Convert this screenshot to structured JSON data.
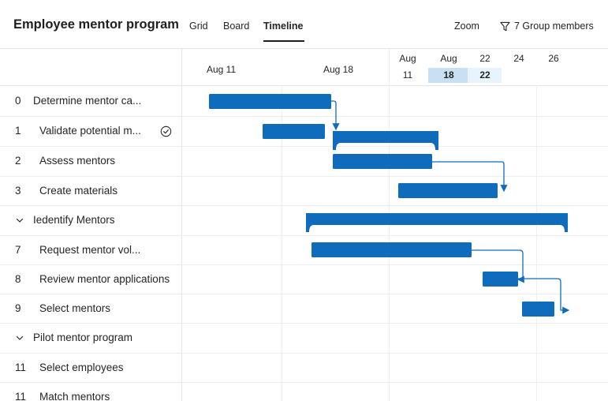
{
  "header": {
    "title": "Employee mentor program",
    "tabs": [
      {
        "label": "Grid"
      },
      {
        "label": "Board"
      },
      {
        "label": "Timeline",
        "active": true
      }
    ],
    "zoom_label": "Zoom",
    "filter_label": "7 Group members"
  },
  "timeline_header": {
    "weeks": [
      "Aug 11",
      "Aug 18"
    ],
    "days": [
      {
        "month": "Aug",
        "day": "11"
      },
      {
        "month": "Aug",
        "day": "18",
        "highlight": "selected"
      },
      {
        "month": "",
        "day": "22",
        "top": "22",
        "highlight": "today"
      },
      {
        "month": "",
        "day": "",
        "top": "24"
      },
      {
        "month": "",
        "day": "",
        "top": "26"
      }
    ]
  },
  "tasks": [
    {
      "num": "0",
      "name": "Determine mentor ca...",
      "type": "task"
    },
    {
      "num": "1",
      "name": "Validate potential m...",
      "type": "task",
      "completed": true
    },
    {
      "num": "2",
      "name": "Assess mentors",
      "type": "task"
    },
    {
      "num": "3",
      "name": "Create materials",
      "type": "task"
    },
    {
      "num": "",
      "name": "Iedentify Mentors",
      "type": "group"
    },
    {
      "num": "7",
      "name": "Request mentor vol...",
      "type": "task"
    },
    {
      "num": "8",
      "name": "Review mentor applications",
      "type": "task"
    },
    {
      "num": "9",
      "name": "Select mentors",
      "type": "task"
    },
    {
      "num": "",
      "name": "Pilot mentor program",
      "type": "group"
    },
    {
      "num": "11",
      "name": "Select employees",
      "type": "task"
    },
    {
      "num": "11",
      "name": "Match mentors",
      "type": "task"
    }
  ],
  "colors": {
    "bar": "#0f6cbd",
    "selected_day": "#c7e0f4",
    "today_day": "#e8f3fc",
    "connector": "#0f6cbd"
  }
}
